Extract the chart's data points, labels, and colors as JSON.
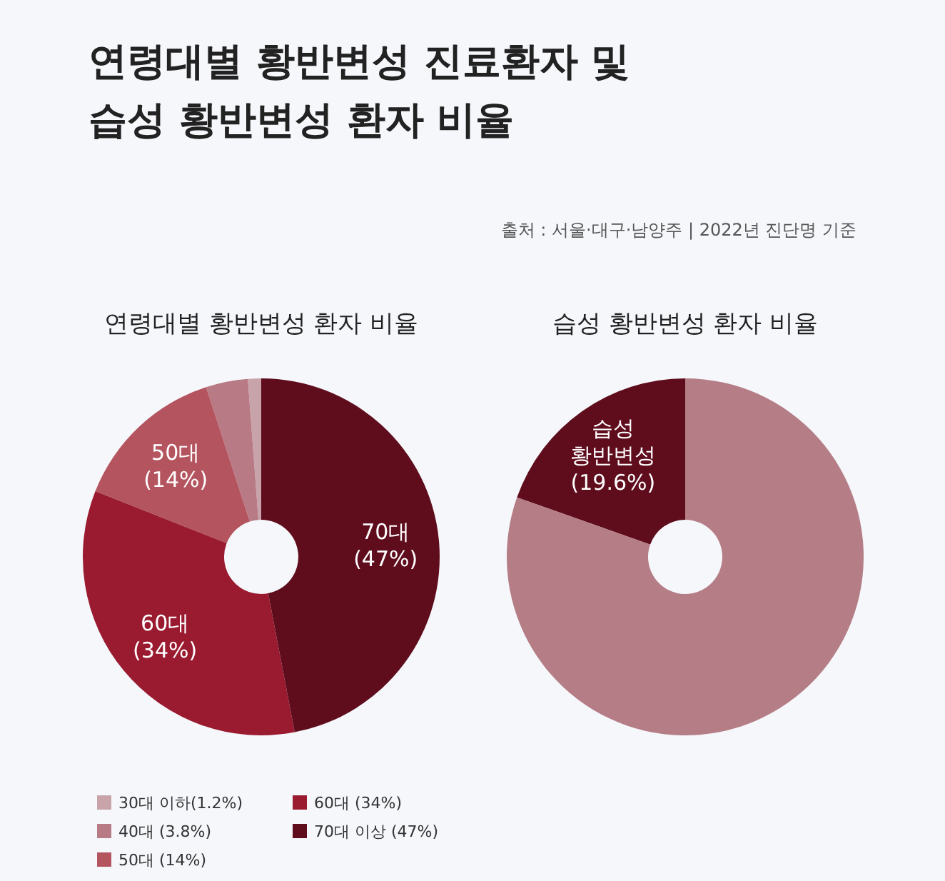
{
  "chart_data": [
    {
      "type": "other",
      "title": "연령대별 황반변성 진료환자 및\n습성 황반변성 환자 비율",
      "annotations": [
        "출처 : 서울·대구·남양주 | 2022년 진단명 기준"
      ]
    },
    {
      "type": "donut",
      "title": "연령대별 황반변성 환자 비율",
      "categories": [
        "30대 이하(1.2%)",
        "40대 (3.8%)",
        "50대 (14%)",
        "60대 (34%)",
        "70대 이상 (47%)"
      ],
      "values": [
        1.2,
        3.8,
        14,
        34,
        47
      ],
      "colors": [
        "#c9a3aa",
        "#b87a84",
        "#b4545f",
        "#9a1a30",
        "#5f0d1d"
      ],
      "value_labels": [
        null,
        null,
        "50대\n(14%)",
        "60대\n(34%)",
        "70대\n(47%)"
      ],
      "legend": "bottom"
    },
    {
      "type": "donut",
      "title": "습성 황반변성 환자 비율",
      "categories": [
        null,
        null
      ],
      "values": [
        19.6,
        80.4
      ],
      "colors": [
        "#5f0d1d",
        "#b57d86"
      ],
      "value_labels": [
        "습성\n황반변성\n(19.6%)",
        null
      ],
      "legend": false
    }
  ]
}
